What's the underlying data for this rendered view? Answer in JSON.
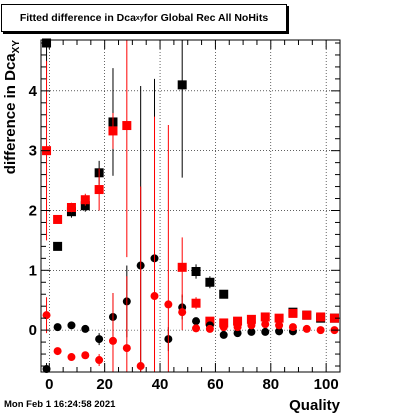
{
  "chart_data": {
    "type": "scatter",
    "title": {
      "prefix": "Fitted difference in Dca",
      "sub": "xy",
      "suffix": " for Global Rec All NoHits"
    },
    "xlabel": "Quality",
    "ylabel": {
      "prefix": "difference in Dca",
      "sub": "XY"
    },
    "xlim": [
      -3,
      105
    ],
    "ylim": [
      -0.7,
      4.85
    ],
    "xticks": [
      0,
      20,
      40,
      60,
      80,
      100
    ],
    "yticks": [
      0,
      1,
      2,
      3,
      4
    ],
    "grid": true,
    "series": [
      {
        "marker": "square",
        "color": "#000000",
        "points": [
          {
            "x": -1,
            "y": 4.8,
            "err": 0.6
          },
          {
            "x": 3,
            "y": 1.4,
            "err": 0.05
          },
          {
            "x": 8,
            "y": 1.98,
            "err": 0.1
          },
          {
            "x": 13,
            "y": 2.08,
            "err": 0.1
          },
          {
            "x": 18,
            "y": 2.63,
            "err": 0.2
          },
          {
            "x": 23,
            "y": 3.48,
            "err": 0.9
          },
          {
            "x": 48,
            "y": 4.1,
            "err": 1.55
          },
          {
            "x": 53,
            "y": 0.98,
            "err": 0.12
          },
          {
            "x": 58,
            "y": 0.8,
            "err": 0.1
          },
          {
            "x": 63,
            "y": 0.6,
            "err": 0.05
          },
          {
            "x": 88,
            "y": 0.3,
            "err": 0.05
          },
          {
            "x": 93,
            "y": 0.25,
            "err": 0.03
          },
          {
            "x": 98,
            "y": 0.2,
            "err": 0.03
          },
          {
            "x": 103,
            "y": 0.2,
            "err": 0.03
          }
        ]
      },
      {
        "marker": "square",
        "color": "#ff0000",
        "points": [
          {
            "x": -1,
            "y": 3.0,
            "err": 1.5
          },
          {
            "x": 3,
            "y": 1.85,
            "err": 0.05
          },
          {
            "x": 8,
            "y": 2.05,
            "err": 0.08
          },
          {
            "x": 13,
            "y": 2.18,
            "err": 0.1
          },
          {
            "x": 18,
            "y": 2.35,
            "err": 0.35
          },
          {
            "x": 23,
            "y": 3.33,
            "err": 0.3
          },
          {
            "x": 28,
            "y": 3.42,
            "err": 2.2
          },
          {
            "x": 48,
            "y": 1.05,
            "err": 0.5
          },
          {
            "x": 53,
            "y": 0.45,
            "err": 0.1
          },
          {
            "x": 58,
            "y": 0.15,
            "err": 0.03
          },
          {
            "x": 63,
            "y": 0.12,
            "err": 0.03
          },
          {
            "x": 68,
            "y": 0.15,
            "err": 0.03
          },
          {
            "x": 73,
            "y": 0.18,
            "err": 0.03
          },
          {
            "x": 78,
            "y": 0.22,
            "err": 0.03
          },
          {
            "x": 83,
            "y": 0.2,
            "err": 0.03
          },
          {
            "x": 88,
            "y": 0.28,
            "err": 0.05
          },
          {
            "x": 93,
            "y": 0.25,
            "err": 0.03
          },
          {
            "x": 98,
            "y": 0.22,
            "err": 0.03
          },
          {
            "x": 103,
            "y": 0.2,
            "err": 0.03
          }
        ]
      },
      {
        "marker": "circle",
        "color": "#000000",
        "points": [
          {
            "x": -1,
            "y": -0.65,
            "err": 0.1
          },
          {
            "x": 3,
            "y": 0.05,
            "err": 0.05
          },
          {
            "x": 8,
            "y": 0.08,
            "err": 0.05
          },
          {
            "x": 13,
            "y": 0.02,
            "err": 0.05
          },
          {
            "x": 18,
            "y": -0.15,
            "err": 0.1
          },
          {
            "x": 23,
            "y": 0.22,
            "err": 0.4
          },
          {
            "x": 28,
            "y": 0.48,
            "err": 0.6
          },
          {
            "x": 33,
            "y": 1.08,
            "err": 3.0
          },
          {
            "x": 38,
            "y": 1.2,
            "err": 3.0
          },
          {
            "x": 43,
            "y": -0.15,
            "err": 0.2
          },
          {
            "x": 48,
            "y": 0.38,
            "err": 0.2
          },
          {
            "x": 53,
            "y": 0.15,
            "err": 0.05
          },
          {
            "x": 58,
            "y": 0.08,
            "err": 0.03
          },
          {
            "x": 63,
            "y": -0.08,
            "err": 0.03
          },
          {
            "x": 68,
            "y": -0.05,
            "err": 0.03
          },
          {
            "x": 73,
            "y": -0.03,
            "err": 0.03
          },
          {
            "x": 78,
            "y": -0.03,
            "err": 0.03
          },
          {
            "x": 83,
            "y": -0.02,
            "err": 0.03
          },
          {
            "x": 88,
            "y": -0.02,
            "err": 0.03
          }
        ]
      },
      {
        "marker": "circle",
        "color": "#ff0000",
        "points": [
          {
            "x": -1,
            "y": 0.25,
            "err": 0.3
          },
          {
            "x": 3,
            "y": -0.35,
            "err": 0.05
          },
          {
            "x": 8,
            "y": -0.45,
            "err": 0.05
          },
          {
            "x": 13,
            "y": -0.42,
            "err": 0.05
          },
          {
            "x": 18,
            "y": -0.5,
            "err": 0.1
          },
          {
            "x": 23,
            "y": -0.18,
            "err": 0.8
          },
          {
            "x": 28,
            "y": -0.3,
            "err": 1.2
          },
          {
            "x": 33,
            "y": -0.6,
            "err": 3.0
          },
          {
            "x": 38,
            "y": 0.57,
            "err": 3.0
          },
          {
            "x": 43,
            "y": 0.43,
            "err": 3.0
          },
          {
            "x": 48,
            "y": 0.3,
            "err": 0.3
          },
          {
            "x": 53,
            "y": 0.03,
            "err": 0.03
          },
          {
            "x": 58,
            "y": 0.02,
            "err": 0.03
          },
          {
            "x": 63,
            "y": 0.05,
            "err": 0.03
          },
          {
            "x": 68,
            "y": 0.05,
            "err": 0.03
          },
          {
            "x": 73,
            "y": 0.08,
            "err": 0.03
          },
          {
            "x": 78,
            "y": 0.1,
            "err": 0.03
          },
          {
            "x": 83,
            "y": 0.08,
            "err": 0.03
          },
          {
            "x": 88,
            "y": 0.05,
            "err": 0.03
          },
          {
            "x": 93,
            "y": 0.02,
            "err": 0.03
          },
          {
            "x": 98,
            "y": 0.0,
            "err": 0.03
          },
          {
            "x": 103,
            "y": 0.0,
            "err": 0.03
          }
        ]
      }
    ]
  },
  "footer": {
    "timestamp": "Mon Feb  1 16:24:58 2021"
  }
}
